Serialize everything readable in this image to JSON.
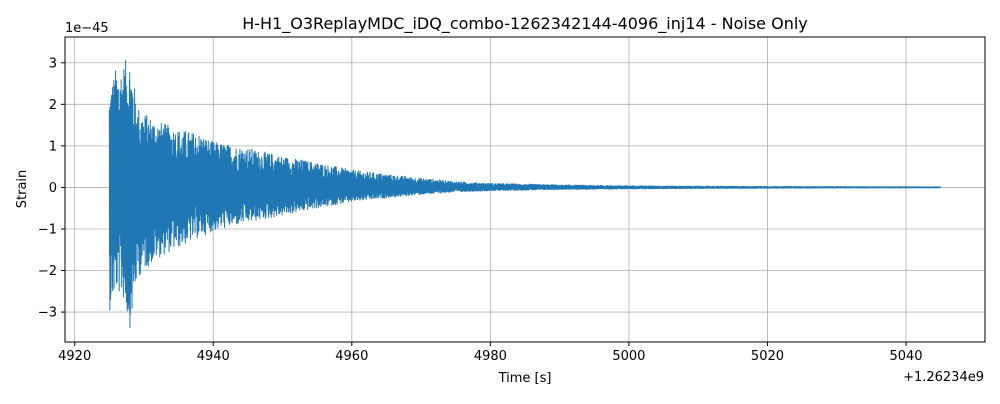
{
  "chart_data": {
    "type": "line",
    "title": "H-H1_O3ReplayMDC_iDQ_combo-1262342144-4096_inj14 - Noise Only",
    "xlabel": "Time [s]",
    "ylabel": "Strain",
    "x_offset_label": "+1.26234e9",
    "y_scale_label": "1e−45",
    "xlim": [
      4918.6,
      5051.4
    ],
    "ylim": [
      -3.72,
      3.62
    ],
    "x_ticks": [
      4920,
      4940,
      4960,
      4980,
      5000,
      5020,
      5040
    ],
    "x_tick_labels": [
      "4920",
      "4940",
      "4960",
      "4980",
      "5000",
      "5020",
      "5040"
    ],
    "y_ticks": [
      -3,
      -2,
      -1,
      0,
      1,
      2,
      3
    ],
    "y_tick_labels": [
      "−3",
      "−2",
      "−1",
      "0",
      "1",
      "2",
      "3"
    ],
    "grid": true,
    "line_color": "#1f77b4",
    "series": [
      {
        "name": "",
        "t_start": 4925.0,
        "t_end": 5045.0,
        "envelope_t": [
          4925,
          4926,
          4927,
          4928,
          4929,
          4930,
          4932,
          4935,
          4938,
          4940,
          4945,
          4950,
          4955,
          4960,
          4965,
          4970,
          4975,
          4980,
          4990,
          5000,
          5010,
          5020,
          5030,
          5045
        ],
        "envelope_upper": [
          2.4,
          2.9,
          3.0,
          3.2,
          2.0,
          1.8,
          1.6,
          1.4,
          1.3,
          1.1,
          0.95,
          0.75,
          0.6,
          0.42,
          0.32,
          0.22,
          0.14,
          0.1,
          0.06,
          0.04,
          0.03,
          0.025,
          0.02,
          0.015
        ],
        "envelope_lower": [
          -3.0,
          -2.5,
          -2.7,
          -3.4,
          -2.2,
          -2.0,
          -1.7,
          -1.45,
          -1.2,
          -1.05,
          -0.85,
          -0.68,
          -0.5,
          -0.35,
          -0.25,
          -0.17,
          -0.11,
          -0.08,
          -0.05,
          -0.035,
          -0.025,
          -0.02,
          -0.015,
          -0.01
        ]
      }
    ]
  }
}
